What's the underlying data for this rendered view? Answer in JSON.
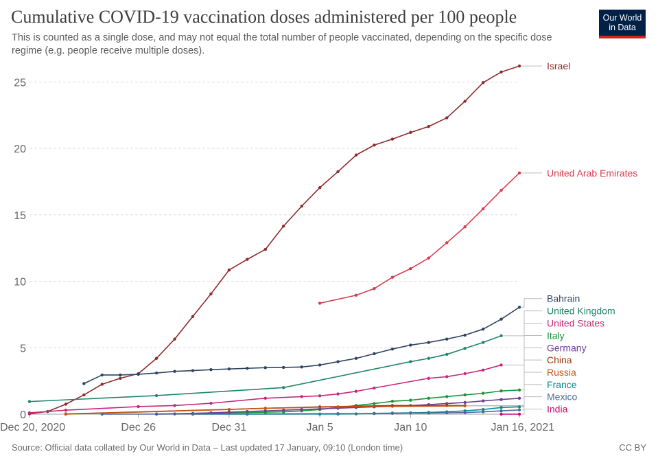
{
  "header": {
    "title": "Cumulative COVID-19 vaccination doses administered per 100 people",
    "subtitle": "This is counted as a single dose, and may not equal the total number of people vaccinated, depending on the specific dose regime (e.g. people receive multiple doses).",
    "logo_line1": "Our World",
    "logo_line2": "in Data"
  },
  "footer": {
    "source": "Source: Official data collated by Our World in Data – Last updated 17 January, 09:10 (London time)",
    "license": "CC BY"
  },
  "chart_data": {
    "type": "line",
    "title": "Cumulative COVID-19 vaccination doses administered per 100 people",
    "xlabel": "",
    "ylabel": "",
    "x_range": [
      "2020-12-20",
      "2021-01-16"
    ],
    "ylim": [
      0,
      26
    ],
    "y_ticks": [
      0,
      5,
      10,
      15,
      20,
      25
    ],
    "x_ticks": [
      {
        "date": "2020-12-20",
        "label": "Dec 20, 2020"
      },
      {
        "date": "2020-12-26",
        "label": "Dec 26"
      },
      {
        "date": "2020-12-31",
        "label": "Dec 31"
      },
      {
        "date": "2021-01-05",
        "label": "Jan 5"
      },
      {
        "date": "2021-01-10",
        "label": "Jan 10"
      },
      {
        "date": "2021-01-16",
        "label": "Jan 16, 2021"
      }
    ],
    "grid": true,
    "legend": "labels at line ends",
    "series": [
      {
        "name": "Israel",
        "color": "#8c2c2c",
        "points": [
          [
            "2020-12-20",
            0.03
          ],
          [
            "2020-12-21",
            0.2
          ],
          [
            "2020-12-22",
            0.75
          ],
          [
            "2020-12-23",
            1.45
          ],
          [
            "2020-12-24",
            2.25
          ],
          [
            "2020-12-25",
            2.7
          ],
          [
            "2020-12-26",
            3.05
          ],
          [
            "2020-12-27",
            4.2
          ],
          [
            "2020-12-28",
            5.65
          ],
          [
            "2020-12-29",
            7.35
          ],
          [
            "2020-12-30",
            9.05
          ],
          [
            "2020-12-31",
            10.85
          ],
          [
            "2021-01-01",
            11.65
          ],
          [
            "2021-01-02",
            12.4
          ],
          [
            "2021-01-03",
            14.15
          ],
          [
            "2021-01-04",
            15.65
          ],
          [
            "2021-01-05",
            17.05
          ],
          [
            "2021-01-06",
            18.25
          ],
          [
            "2021-01-07",
            19.5
          ],
          [
            "2021-01-08",
            20.25
          ],
          [
            "2021-01-09",
            20.7
          ],
          [
            "2021-01-10",
            21.2
          ],
          [
            "2021-01-11",
            21.65
          ],
          [
            "2021-01-12",
            22.3
          ],
          [
            "2021-01-13",
            23.55
          ],
          [
            "2021-01-14",
            24.95
          ],
          [
            "2021-01-15",
            25.75
          ],
          [
            "2021-01-16",
            26.2
          ]
        ]
      },
      {
        "name": "United Arab Emirates",
        "color": "#d73c50",
        "points": [
          [
            "2021-01-05",
            8.35
          ],
          [
            "2021-01-07",
            8.95
          ],
          [
            "2021-01-08",
            9.45
          ],
          [
            "2021-01-09",
            10.3
          ],
          [
            "2021-01-10",
            10.95
          ],
          [
            "2021-01-11",
            11.75
          ],
          [
            "2021-01-12",
            12.9
          ],
          [
            "2021-01-13",
            14.1
          ],
          [
            "2021-01-14",
            15.45
          ],
          [
            "2021-01-15",
            16.85
          ],
          [
            "2021-01-16",
            18.15
          ]
        ]
      },
      {
        "name": "Bahrain",
        "color": "#2f4360",
        "points": [
          [
            "2020-12-23",
            2.3
          ],
          [
            "2020-12-24",
            2.95
          ],
          [
            "2020-12-25",
            2.95
          ],
          [
            "2020-12-26",
            3.0
          ],
          [
            "2020-12-27",
            3.1
          ],
          [
            "2020-12-28",
            3.22
          ],
          [
            "2020-12-29",
            3.28
          ],
          [
            "2020-12-30",
            3.35
          ],
          [
            "2020-12-31",
            3.4
          ],
          [
            "2021-01-01",
            3.45
          ],
          [
            "2021-01-02",
            3.5
          ],
          [
            "2021-01-03",
            3.52
          ],
          [
            "2021-01-04",
            3.55
          ],
          [
            "2021-01-05",
            3.7
          ],
          [
            "2021-01-06",
            3.95
          ],
          [
            "2021-01-07",
            4.2
          ],
          [
            "2021-01-08",
            4.55
          ],
          [
            "2021-01-09",
            4.9
          ],
          [
            "2021-01-10",
            5.2
          ],
          [
            "2021-01-11",
            5.4
          ],
          [
            "2021-01-12",
            5.65
          ],
          [
            "2021-01-13",
            5.95
          ],
          [
            "2021-01-14",
            6.4
          ],
          [
            "2021-01-15",
            7.15
          ],
          [
            "2021-01-16",
            8.05
          ]
        ]
      },
      {
        "name": "United Kingdom",
        "color": "#21856a",
        "points": [
          [
            "2020-12-20",
            0.95
          ],
          [
            "2020-12-27",
            1.4
          ],
          [
            "2021-01-03",
            2.0
          ],
          [
            "2021-01-10",
            3.95
          ],
          [
            "2021-01-11",
            4.2
          ],
          [
            "2021-01-12",
            4.5
          ],
          [
            "2021-01-13",
            4.95
          ],
          [
            "2021-01-14",
            5.4
          ],
          [
            "2021-01-15",
            5.9
          ]
        ]
      },
      {
        "name": "United States",
        "color": "#c8267a",
        "points": [
          [
            "2020-12-20",
            0.1
          ],
          [
            "2020-12-22",
            0.3
          ],
          [
            "2020-12-26",
            0.57
          ],
          [
            "2020-12-28",
            0.65
          ],
          [
            "2020-12-30",
            0.82
          ],
          [
            "2021-01-02",
            1.2
          ],
          [
            "2021-01-04",
            1.32
          ],
          [
            "2021-01-05",
            1.38
          ],
          [
            "2021-01-06",
            1.52
          ],
          [
            "2021-01-07",
            1.72
          ],
          [
            "2021-01-08",
            1.97
          ],
          [
            "2021-01-11",
            2.7
          ],
          [
            "2021-01-12",
            2.82
          ],
          [
            "2021-01-13",
            3.05
          ],
          [
            "2021-01-14",
            3.32
          ],
          [
            "2021-01-15",
            3.7
          ]
        ]
      },
      {
        "name": "Italy",
        "color": "#16963c",
        "points": [
          [
            "2020-12-27",
            0.02
          ],
          [
            "2020-12-31",
            0.1
          ],
          [
            "2021-01-02",
            0.15
          ],
          [
            "2021-01-03",
            0.18
          ],
          [
            "2021-01-04",
            0.25
          ],
          [
            "2021-01-05",
            0.35
          ],
          [
            "2021-01-06",
            0.5
          ],
          [
            "2021-01-07",
            0.65
          ],
          [
            "2021-01-08",
            0.8
          ],
          [
            "2021-01-09",
            0.97
          ],
          [
            "2021-01-10",
            1.05
          ],
          [
            "2021-01-11",
            1.2
          ],
          [
            "2021-01-12",
            1.32
          ],
          [
            "2021-01-13",
            1.45
          ],
          [
            "2021-01-14",
            1.57
          ],
          [
            "2021-01-15",
            1.75
          ],
          [
            "2021-01-16",
            1.82
          ]
        ]
      },
      {
        "name": "Germany",
        "color": "#6d3e91",
        "points": [
          [
            "2020-12-27",
            0.0
          ],
          [
            "2020-12-28",
            0.02
          ],
          [
            "2020-12-29",
            0.06
          ],
          [
            "2020-12-30",
            0.1
          ],
          [
            "2020-12-31",
            0.15
          ],
          [
            "2021-01-01",
            0.2
          ],
          [
            "2021-01-02",
            0.25
          ],
          [
            "2021-01-03",
            0.3
          ],
          [
            "2021-01-04",
            0.35
          ],
          [
            "2021-01-05",
            0.4
          ],
          [
            "2021-01-06",
            0.45
          ],
          [
            "2021-01-07",
            0.5
          ],
          [
            "2021-01-08",
            0.55
          ],
          [
            "2021-01-09",
            0.6
          ],
          [
            "2021-01-10",
            0.65
          ],
          [
            "2021-01-11",
            0.72
          ],
          [
            "2021-01-12",
            0.8
          ],
          [
            "2021-01-13",
            0.88
          ],
          [
            "2021-01-14",
            1.0
          ],
          [
            "2021-01-15",
            1.1
          ],
          [
            "2021-01-16",
            1.2
          ]
        ]
      },
      {
        "name": "China",
        "color": "#a2380c",
        "points": [
          [
            "2020-12-22",
            0.02
          ],
          [
            "2021-01-05",
            0.55
          ],
          [
            "2021-01-09",
            0.65
          ],
          [
            "2021-01-12",
            0.65
          ],
          [
            "2021-01-13",
            0.65
          ]
        ]
      },
      {
        "name": "Russia",
        "color": "#c15717",
        "points": [
          [
            "2020-12-22",
            0.0
          ],
          [
            "2020-12-31",
            0.35
          ],
          [
            "2021-01-02",
            0.45
          ],
          [
            "2021-01-06",
            0.55
          ],
          [
            "2021-01-13",
            0.62
          ]
        ]
      },
      {
        "name": "France",
        "color": "#0b8990",
        "points": [
          [
            "2020-12-29",
            0.0
          ],
          [
            "2021-01-01",
            0.0
          ],
          [
            "2021-01-05",
            0.01
          ],
          [
            "2021-01-06",
            0.01
          ],
          [
            "2021-01-07",
            0.02
          ],
          [
            "2021-01-08",
            0.06
          ],
          [
            "2021-01-09",
            0.08
          ],
          [
            "2021-01-10",
            0.1
          ],
          [
            "2021-01-11",
            0.13
          ],
          [
            "2021-01-12",
            0.18
          ],
          [
            "2021-01-13",
            0.25
          ],
          [
            "2021-01-14",
            0.35
          ],
          [
            "2021-01-15",
            0.5
          ],
          [
            "2021-01-16",
            0.55
          ]
        ]
      },
      {
        "name": "Mexico",
        "color": "#4c6a9c",
        "points": [
          [
            "2020-12-24",
            0.0
          ],
          [
            "2021-01-01",
            0.02
          ],
          [
            "2021-01-06",
            0.04
          ],
          [
            "2021-01-08",
            0.05
          ],
          [
            "2021-01-09",
            0.06
          ],
          [
            "2021-01-10",
            0.08
          ],
          [
            "2021-01-11",
            0.08
          ],
          [
            "2021-01-12",
            0.1
          ],
          [
            "2021-01-13",
            0.12
          ],
          [
            "2021-01-14",
            0.18
          ],
          [
            "2021-01-15",
            0.25
          ],
          [
            "2021-01-16",
            0.32
          ]
        ]
      },
      {
        "name": "India",
        "color": "#c40f6f",
        "points": [
          [
            "2021-01-15",
            0.0
          ],
          [
            "2021-01-16",
            0.0
          ]
        ]
      }
    ],
    "label_slots": {
      "Israel": 26.2,
      "United Arab Emirates": 18.15,
      "Bahrain": 8.7,
      "United Kingdom": 7.77,
      "United States": 6.85,
      "Italy": 5.92,
      "Germany": 5.0,
      "China": 4.08,
      "Russia": 3.15,
      "France": 2.23,
      "Mexico": 1.31,
      "India": 0.38
    }
  }
}
